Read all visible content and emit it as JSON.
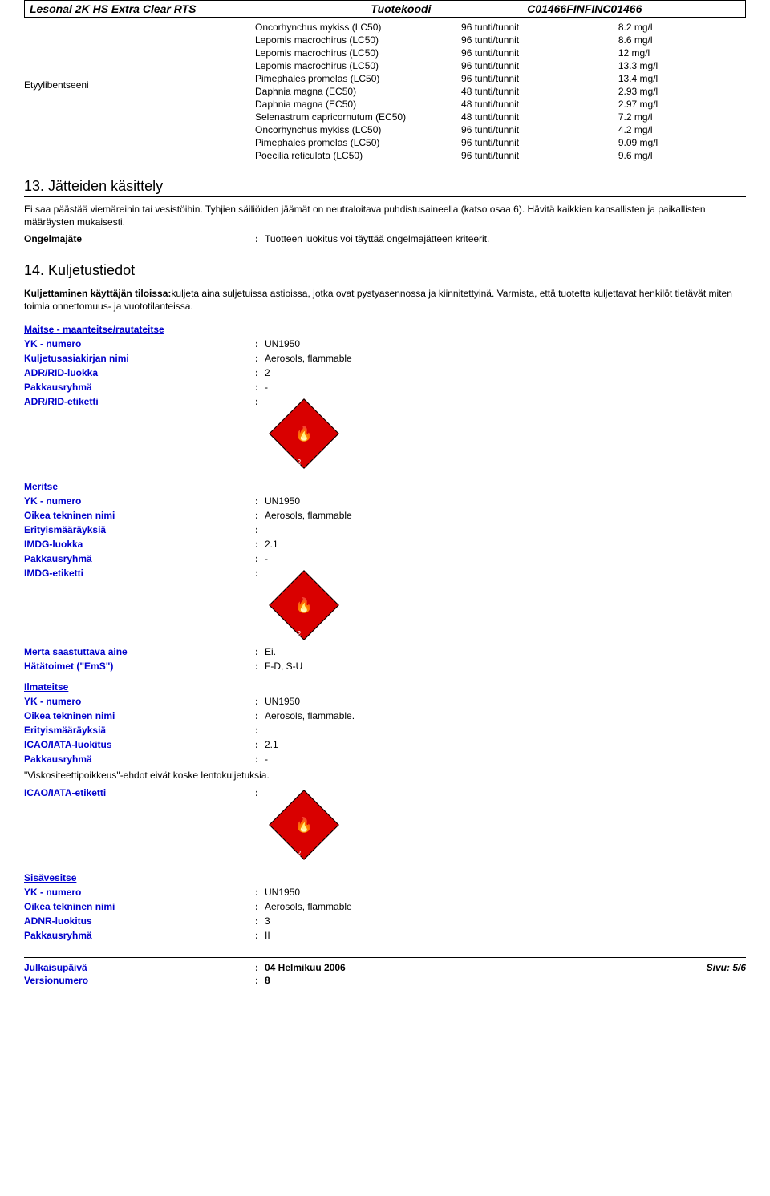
{
  "header": {
    "product": "Lesonal 2K HS Extra Clear RTS",
    "code_label": "Tuotekoodi",
    "code_value": "C01466FINFINC01466"
  },
  "tox": {
    "substance_label": "Etyylibentseeni",
    "rows": [
      {
        "name": "Oncorhynchus mykiss (LC50)",
        "dur": "96 tunti/tunnit",
        "val": "8.2 mg/l"
      },
      {
        "name": "Lepomis macrochirus (LC50)",
        "dur": "96 tunti/tunnit",
        "val": "8.6 mg/l"
      },
      {
        "name": "Lepomis macrochirus (LC50)",
        "dur": "96 tunti/tunnit",
        "val": "12 mg/l"
      },
      {
        "name": "Lepomis macrochirus (LC50)",
        "dur": "96 tunti/tunnit",
        "val": "13.3 mg/l"
      },
      {
        "name": "Pimephales promelas (LC50)",
        "dur": "96 tunti/tunnit",
        "val": "13.4 mg/l"
      },
      {
        "name": "Daphnia magna (EC50)",
        "dur": "48 tunti/tunnit",
        "val": "2.93 mg/l"
      },
      {
        "name": "Daphnia magna (EC50)",
        "dur": "48 tunti/tunnit",
        "val": "2.97 mg/l"
      },
      {
        "name": "Selenastrum capricornutum (EC50)",
        "dur": "48 tunti/tunnit",
        "val": "7.2 mg/l"
      },
      {
        "name": "Oncorhynchus mykiss (LC50)",
        "dur": "96 tunti/tunnit",
        "val": "4.2 mg/l"
      },
      {
        "name": "Pimephales promelas (LC50)",
        "dur": "96 tunti/tunnit",
        "val": "9.09 mg/l"
      },
      {
        "name": "Poecilia reticulata (LC50)",
        "dur": "96 tunti/tunnit",
        "val": "9.6 mg/l"
      }
    ]
  },
  "s13": {
    "title": "13. Jätteiden käsittely",
    "p1": "Ei saa päästää viemäreihin tai vesistöihin. Tyhjien säiliöiden jäämät on neutraloitava puhdistusaineella (katso osaa 6). Hävitä kaikkien kansallisten ja paikallisten määräysten mukaisesti.",
    "waste_k": "Ongelmajäte",
    "waste_v": "Tuotteen luokitus voi täyttää ongelmajätteen kriteerit."
  },
  "s14": {
    "title": "14. Kuljetustiedot",
    "intro_k": "Kuljettaminen käyttäjän tiloissa:",
    "intro_v": "kuljeta aina suljetuissa astioissa, jotka ovat pystyasennossa ja kiinnitettyinä. Varmista, että tuotetta kuljettavat henkilöt tietävät miten toimia onnettomuus- ja vuototilanteissa.",
    "road": {
      "head": "Maitse - maanteitse/rautateitse",
      "un_k": "YK - numero",
      "un_v": "UN1950",
      "name_k": "Kuljetusasiakirjan nimi",
      "name_v": "Aerosols, flammable",
      "class_k": "ADR/RID-luokka",
      "class_v": "2",
      "pg_k": "Pakkausryhmä",
      "pg_v": "-",
      "label_k": "ADR/RID-etiketti"
    },
    "sea": {
      "head": "Meritse",
      "un_k": "YK - numero",
      "un_v": "UN1950",
      "name_k": "Oikea tekninen nimi",
      "name_v": "Aerosols, flammable",
      "spec_k": "Erityismääräyksiä",
      "spec_v": "",
      "class_k": "IMDG-luokka",
      "class_v": "2.1",
      "pg_k": "Pakkausryhmä",
      "pg_v": "-",
      "label_k": "IMDG-etiketti",
      "marine_k": "Merta saastuttava aine",
      "marine_v": "Ei.",
      "ems_k": "Hätätoimet (\"EmS\")",
      "ems_v": "F-D, S-U"
    },
    "air": {
      "head": "Ilmateitse",
      "un_k": "YK - numero",
      "un_v": "UN1950",
      "name_k": "Oikea tekninen nimi",
      "name_v": "Aerosols, flammable.",
      "spec_k": "Erityismääräyksiä",
      "spec_v": "",
      "class_k": "ICAO/IATA-luokitus",
      "class_v": "2.1",
      "pg_k": "Pakkausryhmä",
      "pg_v": "-",
      "note": "\"Viskositeettipoikkeus\"-ehdot eivät koske lentokuljetuksia.",
      "label_k": "ICAO/IATA-etiketti"
    },
    "inland": {
      "head": "Sisävesitse",
      "un_k": "YK - numero",
      "un_v": "UN1950",
      "name_k": "Oikea tekninen nimi",
      "name_v": "Aerosols, flammable",
      "class_k": "ADNR-luokitus",
      "class_v": "3",
      "pg_k": "Pakkausryhmä",
      "pg_v": "II"
    }
  },
  "footer": {
    "pub_k": "Julkaisupäivä",
    "pub_v": "04 Helmikuu 2006",
    "ver_k": "Versionumero",
    "ver_v": "8",
    "page": "Sivu: 5/6"
  },
  "hazard_label_num": "2"
}
